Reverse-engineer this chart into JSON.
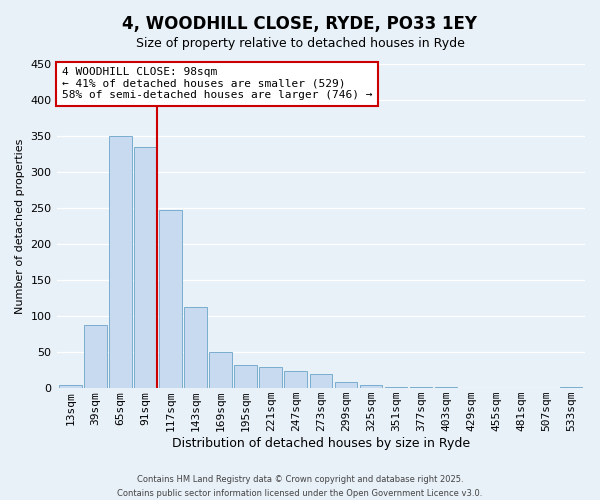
{
  "title": "4, WOODHILL CLOSE, RYDE, PO33 1EY",
  "subtitle": "Size of property relative to detached houses in Ryde",
  "xlabel": "Distribution of detached houses by size in Ryde",
  "ylabel": "Number of detached properties",
  "footer_line1": "Contains HM Land Registry data © Crown copyright and database right 2025.",
  "footer_line2": "Contains public sector information licensed under the Open Government Licence v3.0.",
  "categories": [
    "13sqm",
    "39sqm",
    "65sqm",
    "91sqm",
    "117sqm",
    "143sqm",
    "169sqm",
    "195sqm",
    "221sqm",
    "247sqm",
    "273sqm",
    "299sqm",
    "325sqm",
    "351sqm",
    "377sqm",
    "403sqm",
    "429sqm",
    "455sqm",
    "481sqm",
    "507sqm",
    "533sqm"
  ],
  "values": [
    5,
    88,
    350,
    335,
    247,
    112,
    50,
    32,
    30,
    24,
    20,
    9,
    4,
    1,
    1,
    1,
    0,
    0,
    0,
    0,
    1
  ],
  "bar_color": "#c8daf0",
  "bar_edge_color": "#7aadce",
  "background_color": "#e8f0f8",
  "grid_color": "#ffffff",
  "vline_color": "#cc0000",
  "annotation_text": "4 WOODHILL CLOSE: 98sqm\n← 41% of detached houses are smaller (529)\n58% of semi-detached houses are larger (746) →",
  "annotation_box_color": "#ffffff",
  "annotation_box_edge_color": "#cc0000",
  "ylim": [
    0,
    450
  ],
  "yticks": [
    0,
    50,
    100,
    150,
    200,
    250,
    300,
    350,
    400,
    450
  ],
  "title_fontsize": 12,
  "subtitle_fontsize": 9,
  "ylabel_fontsize": 8,
  "xlabel_fontsize": 9,
  "tick_fontsize": 8,
  "annot_fontsize": 8
}
